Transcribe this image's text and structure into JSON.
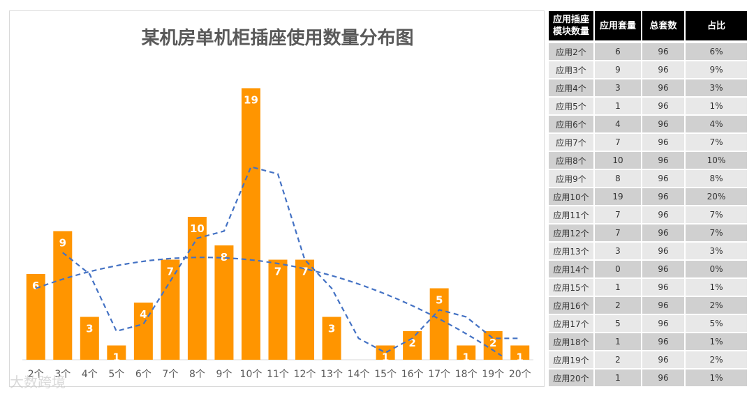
{
  "chart_data": {
    "type": "bar",
    "title": "某机房单机柜插座使用数量分布图",
    "categories": [
      "2个",
      "3个",
      "4个",
      "5个",
      "6个",
      "7个",
      "8个",
      "9个",
      "10个",
      "11个",
      "12个",
      "13个",
      "14个",
      "15个",
      "16个",
      "17个",
      "18个",
      "19个",
      "20个"
    ],
    "values": [
      6,
      9,
      3,
      1,
      4,
      7,
      10,
      8,
      19,
      7,
      7,
      3,
      0,
      1,
      2,
      5,
      1,
      2,
      1
    ],
    "data_labels": true,
    "bar_color": "#ff9500",
    "trendlines": [
      {
        "type": "moving-average",
        "style": "dashed",
        "color": "#4472c4"
      },
      {
        "type": "polynomial",
        "style": "dashed",
        "color": "#4472c4"
      }
    ],
    "ylim": [
      0,
      20
    ],
    "grid": false,
    "legend": "none"
  },
  "table": {
    "headers": [
      "应用插座模块数量",
      "应用套量",
      "总套数",
      "占比"
    ],
    "rows": [
      [
        "应用2个",
        "6",
        "96",
        "6%"
      ],
      [
        "应用3个",
        "9",
        "96",
        "9%"
      ],
      [
        "应用4个",
        "3",
        "96",
        "3%"
      ],
      [
        "应用5个",
        "1",
        "96",
        "1%"
      ],
      [
        "应用6个",
        "4",
        "96",
        "4%"
      ],
      [
        "应用7个",
        "7",
        "96",
        "7%"
      ],
      [
        "应用8个",
        "10",
        "96",
        "10%"
      ],
      [
        "应用9个",
        "8",
        "96",
        "8%"
      ],
      [
        "应用10个",
        "19",
        "96",
        "20%"
      ],
      [
        "应用11个",
        "7",
        "96",
        "7%"
      ],
      [
        "应用12个",
        "7",
        "96",
        "7%"
      ],
      [
        "应用13个",
        "3",
        "96",
        "3%"
      ],
      [
        "应用14个",
        "0",
        "96",
        "0%"
      ],
      [
        "应用15个",
        "1",
        "96",
        "1%"
      ],
      [
        "应用16个",
        "2",
        "96",
        "2%"
      ],
      [
        "应用17个",
        "5",
        "96",
        "5%"
      ],
      [
        "应用18个",
        "1",
        "96",
        "1%"
      ],
      [
        "应用19个",
        "2",
        "96",
        "2%"
      ],
      [
        "应用20个",
        "1",
        "96",
        "1%"
      ]
    ]
  },
  "watermark": "大数跨境"
}
